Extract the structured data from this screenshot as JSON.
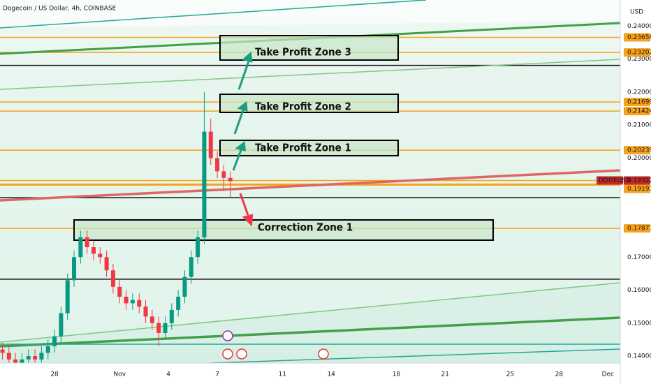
{
  "chart_data": {
    "type": "candlestick",
    "title": "Dogecoin / US Dollar, 4h, COINBASE",
    "currency": "USD",
    "symbol": "DOGEUSD",
    "up_color": "#089981",
    "down_color": "#f23645",
    "x": [
      -3.2,
      -2.8,
      -2.4,
      -2.0,
      -1.6,
      -1.2,
      -0.8,
      -0.4,
      0.0,
      0.4,
      0.8,
      1.2,
      1.6,
      2.0,
      2.4,
      2.8,
      3.2,
      3.6,
      4.0,
      4.4,
      4.8,
      5.2,
      5.6,
      6.0,
      6.4,
      6.8,
      7.2,
      7.6,
      8.0,
      8.4,
      8.8,
      9.2,
      9.6,
      10.0,
      10.4,
      10.8
    ],
    "open": [
      0.142,
      0.141,
      0.139,
      0.138,
      0.139,
      0.14,
      0.139,
      0.141,
      0.143,
      0.146,
      0.153,
      0.163,
      0.17,
      0.176,
      0.173,
      0.171,
      0.17,
      0.166,
      0.161,
      0.158,
      0.156,
      0.157,
      0.155,
      0.152,
      0.15,
      0.147,
      0.15,
      0.154,
      0.158,
      0.164,
      0.17,
      0.176,
      0.208,
      0.2,
      0.196,
      0.194
    ],
    "high": [
      0.144,
      0.143,
      0.141,
      0.141,
      0.142,
      0.142,
      0.143,
      0.145,
      0.148,
      0.155,
      0.165,
      0.172,
      0.178,
      0.178,
      0.175,
      0.173,
      0.172,
      0.168,
      0.163,
      0.16,
      0.159,
      0.159,
      0.157,
      0.154,
      0.152,
      0.152,
      0.156,
      0.16,
      0.166,
      0.172,
      0.178,
      0.22,
      0.212,
      0.202,
      0.198,
      0.196
    ],
    "low": [
      0.139,
      0.137,
      0.136,
      0.136,
      0.137,
      0.137,
      0.137,
      0.139,
      0.141,
      0.144,
      0.151,
      0.161,
      0.168,
      0.171,
      0.169,
      0.168,
      0.164,
      0.159,
      0.156,
      0.154,
      0.154,
      0.153,
      0.15,
      0.148,
      0.143,
      0.145,
      0.148,
      0.152,
      0.156,
      0.162,
      0.168,
      0.174,
      0.198,
      0.194,
      0.19,
      0.188
    ],
    "close": [
      0.141,
      0.139,
      0.138,
      0.139,
      0.14,
      0.139,
      0.141,
      0.143,
      0.146,
      0.153,
      0.163,
      0.17,
      0.176,
      0.173,
      0.171,
      0.17,
      0.166,
      0.161,
      0.158,
      0.156,
      0.157,
      0.155,
      0.152,
      0.15,
      0.147,
      0.15,
      0.154,
      0.158,
      0.164,
      0.17,
      0.176,
      0.208,
      0.2,
      0.196,
      0.194,
      0.193
    ],
    "xlim": [
      -3.35,
      34.76
    ],
    "xticks": [
      {
        "value": 0,
        "label": "28"
      },
      {
        "value": 4,
        "label": "Nov"
      },
      {
        "value": 7,
        "label": "4"
      },
      {
        "value": 10,
        "label": "7"
      },
      {
        "value": 14,
        "label": "11"
      },
      {
        "value": 17,
        "label": "14"
      },
      {
        "value": 21,
        "label": "18"
      },
      {
        "value": 24,
        "label": "21"
      },
      {
        "value": 28,
        "label": "25"
      },
      {
        "value": 31,
        "label": "28"
      },
      {
        "value": 34,
        "label": "Dec"
      }
    ],
    "ylim": [
      0.1379,
      0.2479
    ],
    "yticks": [
      {
        "value": 0.24,
        "label": "0.24000"
      },
      {
        "value": 0.23,
        "label": "0.23000"
      },
      {
        "value": 0.22,
        "label": "0.22000"
      },
      {
        "value": 0.21,
        "label": "0.21000"
      },
      {
        "value": 0.2,
        "label": "0.20000"
      },
      {
        "value": 0.17,
        "label": "0.17000"
      },
      {
        "value": 0.16,
        "label": "0.16000"
      },
      {
        "value": 0.15,
        "label": "0.15000"
      },
      {
        "value": 0.14,
        "label": "0.14000"
      }
    ],
    "levels": [
      {
        "value": 0.23658,
        "label": "0.23658",
        "color": "#f7a21b"
      },
      {
        "value": 0.23202,
        "label": "0.23202",
        "color": "#f7a21b"
      },
      {
        "value": 0.21699,
        "label": "0.21699",
        "color": "#f7a21b"
      },
      {
        "value": 0.21424,
        "label": "0.21424",
        "color": "#f7a21b"
      },
      {
        "value": 0.20239,
        "label": "0.20239",
        "color": "#f7a21b"
      },
      {
        "value": 0.19322,
        "label": "0.19322",
        "color": "#c62828"
      },
      {
        "value": 0.19197,
        "label": "0.19197",
        "color": "#f7a21b"
      },
      {
        "value": 0.17871,
        "label": "0.17871",
        "color": "#f7a21b"
      }
    ],
    "black_levels": [
      0.2281,
      0.188,
      0.1633
    ],
    "zones": [
      "Take Profit Zone 3",
      "Take Profit Zone 2",
      "Take Profit Zone 1",
      "Correction Zone 1"
    ]
  }
}
